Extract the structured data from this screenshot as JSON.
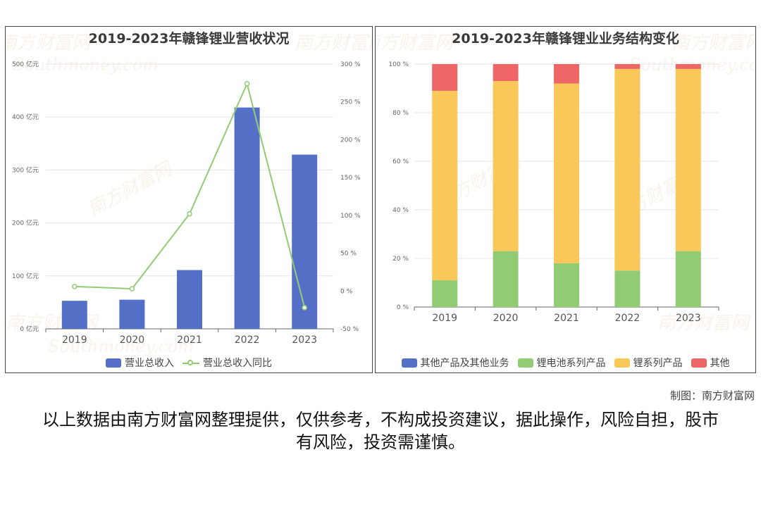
{
  "watermark": {
    "cn": "南方财富网",
    "en": "Southmoney.com"
  },
  "chart_data": [
    {
      "type": "bar",
      "title": "2019-2023年赣锋锂业营收状况",
      "categories": [
        "2019",
        "2020",
        "2021",
        "2022",
        "2023"
      ],
      "series": [
        {
          "name": "营业总收入",
          "axis": "left",
          "color": "#5470c6",
          "values": [
            53,
            55,
            111,
            418,
            329
          ]
        },
        {
          "name": "营业总收入同比",
          "axis": "right",
          "kind": "line",
          "color": "#91cc75",
          "values": [
            6,
            3,
            102,
            274,
            -22
          ]
        }
      ],
      "y_left": {
        "ticks": [
          "0 亿元",
          "100 亿元",
          "200 亿元",
          "300 亿元",
          "400 亿元",
          "500 亿元"
        ],
        "ylim": [
          0,
          500
        ]
      },
      "y_right": {
        "ticks": [
          "-50 %",
          "0 %",
          "50 %",
          "100 %",
          "150 %",
          "200 %",
          "250 %",
          "300 %"
        ],
        "ylim": [
          -50,
          300
        ]
      },
      "grid": true,
      "legend": "bottom"
    },
    {
      "type": "bar",
      "stacked": true,
      "title": "2019-2023年赣锋锂业业务结构变化",
      "categories": [
        "2019",
        "2020",
        "2021",
        "2022",
        "2023"
      ],
      "series": [
        {
          "name": "其他产品及其他业务",
          "color": "#5470c6",
          "values": [
            0,
            0,
            0,
            0,
            0
          ]
        },
        {
          "name": "锂电池系列产品",
          "color": "#91cc75",
          "values": [
            11,
            23,
            18,
            15,
            23
          ]
        },
        {
          "name": "锂系列产品",
          "color": "#fac858",
          "values": [
            78,
            70,
            74,
            83,
            75
          ]
        },
        {
          "name": "其他",
          "color": "#ee6666",
          "values": [
            11,
            7,
            8,
            2,
            2
          ]
        }
      ],
      "y": {
        "ticks": [
          "0 %",
          "20 %",
          "40 %",
          "60 %",
          "80 %",
          "100 %"
        ],
        "ylim": [
          0,
          100
        ]
      },
      "grid": true,
      "legend": "bottom"
    }
  ],
  "footer": {
    "credit": "制图：南方财富网",
    "disclaimer": "以上数据由南方财富网整理提供，仅供参考，不构成投资建议，据此操作，风险自担，股市有风险，投资需谨慎。"
  }
}
